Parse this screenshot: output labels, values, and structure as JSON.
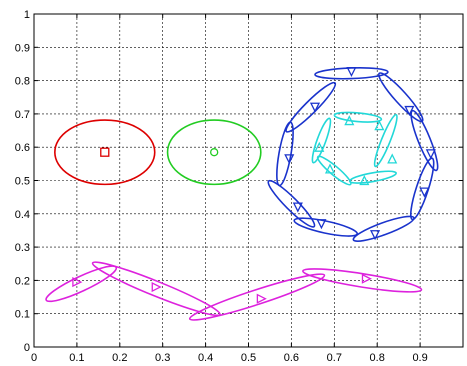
{
  "chart_data": {
    "type": "scatter",
    "title": "",
    "xlabel": "",
    "ylabel": "",
    "xlim": [
      0,
      1
    ],
    "ylim": [
      0,
      1
    ],
    "grid": true,
    "grid_style": "dotted",
    "xticks": [
      "0",
      "0.1",
      "0.2",
      "0.3",
      "0.4",
      "0.5",
      "0.6",
      "0.7",
      "0.8",
      "0.9"
    ],
    "yticks": [
      "0",
      "0.1",
      "0.2",
      "0.3",
      "0.4",
      "0.5",
      "0.6",
      "0.7",
      "0.8",
      "0.9",
      "1"
    ],
    "colors": {
      "red": "#dd0000",
      "green": "#22cc22",
      "blue": "#1a33cc",
      "cyan": "#22d8d8",
      "magenta": "#dd22dd"
    },
    "series": [
      {
        "color": "red",
        "marker": "square",
        "points": [
          {
            "x": 0.165,
            "y": 0.585
          }
        ],
        "ellipses": [
          {
            "cx": 0.165,
            "cy": 0.585,
            "a": 0.075,
            "b": 0.15,
            "angle": 90
          }
        ]
      },
      {
        "color": "green",
        "marker": "circle",
        "points": [
          {
            "x": 0.42,
            "y": 0.585
          }
        ],
        "ellipses": [
          {
            "cx": 0.42,
            "cy": 0.585,
            "a": 0.075,
            "b": 0.14,
            "angle": 90
          }
        ]
      },
      {
        "color": "blue",
        "marker": "triangle-down",
        "points": [
          {
            "x": 0.74,
            "y": 0.827
          },
          {
            "x": 0.875,
            "y": 0.71
          },
          {
            "x": 0.925,
            "y": 0.58
          },
          {
            "x": 0.91,
            "y": 0.465
          },
          {
            "x": 0.795,
            "y": 0.337
          },
          {
            "x": 0.67,
            "y": 0.37
          },
          {
            "x": 0.615,
            "y": 0.42
          },
          {
            "x": 0.595,
            "y": 0.565
          },
          {
            "x": 0.655,
            "y": 0.72
          }
        ],
        "ellipses": [
          {
            "cx": 0.74,
            "cy": 0.822,
            "a": 0.085,
            "b": 0.016,
            "angle": 2
          },
          {
            "cx": 0.855,
            "cy": 0.75,
            "a": 0.075,
            "b": 0.018,
            "angle": -48
          },
          {
            "cx": 0.91,
            "cy": 0.62,
            "a": 0.075,
            "b": 0.018,
            "angle": -68
          },
          {
            "cx": 0.905,
            "cy": 0.475,
            "a": 0.075,
            "b": 0.018,
            "angle": 72
          },
          {
            "cx": 0.815,
            "cy": 0.355,
            "a": 0.075,
            "b": 0.018,
            "angle": 20
          },
          {
            "cx": 0.68,
            "cy": 0.36,
            "a": 0.075,
            "b": 0.018,
            "angle": -12
          },
          {
            "cx": 0.6,
            "cy": 0.43,
            "a": 0.075,
            "b": 0.018,
            "angle": -45
          },
          {
            "cx": 0.585,
            "cy": 0.58,
            "a": 0.075,
            "b": 0.018,
            "angle": 80
          },
          {
            "cx": 0.645,
            "cy": 0.72,
            "a": 0.08,
            "b": 0.018,
            "angle": 45
          }
        ]
      },
      {
        "color": "cyan",
        "marker": "triangle-up",
        "points": [
          {
            "x": 0.735,
            "y": 0.68
          },
          {
            "x": 0.805,
            "y": 0.665
          },
          {
            "x": 0.835,
            "y": 0.565
          },
          {
            "x": 0.77,
            "y": 0.5
          },
          {
            "x": 0.69,
            "y": 0.535
          },
          {
            "x": 0.665,
            "y": 0.6
          }
        ],
        "ellipses": [
          {
            "cx": 0.755,
            "cy": 0.69,
            "a": 0.055,
            "b": 0.013,
            "angle": -5
          },
          {
            "cx": 0.82,
            "cy": 0.62,
            "a": 0.065,
            "b": 0.013,
            "angle": 68
          },
          {
            "cx": 0.79,
            "cy": 0.51,
            "a": 0.055,
            "b": 0.013,
            "angle": 10
          },
          {
            "cx": 0.7,
            "cy": 0.53,
            "a": 0.05,
            "b": 0.013,
            "angle": -40
          },
          {
            "cx": 0.67,
            "cy": 0.62,
            "a": 0.055,
            "b": 0.013,
            "angle": 70
          }
        ]
      },
      {
        "color": "magenta",
        "marker": "triangle-right",
        "points": [
          {
            "x": 0.1,
            "y": 0.195
          },
          {
            "x": 0.285,
            "y": 0.18
          },
          {
            "x": 0.53,
            "y": 0.145
          },
          {
            "x": 0.775,
            "y": 0.205
          }
        ],
        "ellipses": [
          {
            "cx": 0.11,
            "cy": 0.19,
            "a": 0.09,
            "b": 0.022,
            "angle": 25
          },
          {
            "cx": 0.285,
            "cy": 0.175,
            "a": 0.16,
            "b": 0.022,
            "angle": -22
          },
          {
            "cx": 0.52,
            "cy": 0.15,
            "a": 0.165,
            "b": 0.022,
            "angle": 18
          },
          {
            "cx": 0.765,
            "cy": 0.2,
            "a": 0.14,
            "b": 0.02,
            "angle": -9
          }
        ]
      }
    ]
  }
}
